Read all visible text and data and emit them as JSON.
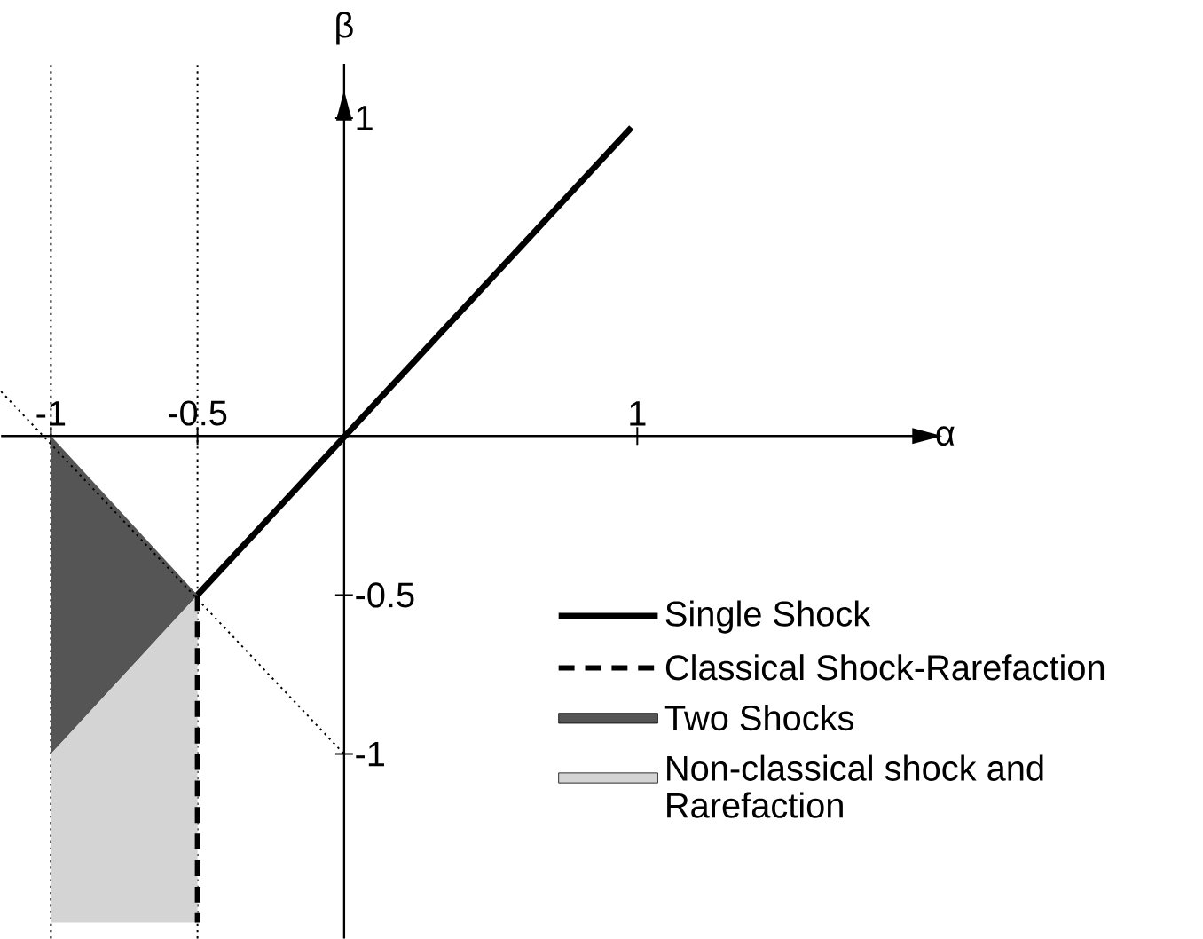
{
  "chart_data": {
    "type": "line",
    "xlabel": "α",
    "ylabel": "β",
    "xlim": [
      -1.17,
      1.95
    ],
    "ylim": [
      -1.58,
      1.17
    ],
    "xticks": [
      -1,
      -0.5,
      1
    ],
    "yticks": [
      -1,
      -0.5,
      1
    ],
    "legend": "bottom right",
    "series": [
      {
        "name": "Single Shock",
        "color": "#000000",
        "line_style": "solid",
        "x": [
          -0.5,
          0.98
        ],
        "values": [
          -0.5,
          0.97
        ]
      },
      {
        "name": "Classical Shock-Rarefaction",
        "color": "#000000",
        "line_style": "dashed",
        "x": [
          -0.5,
          -0.5
        ],
        "values": [
          -0.5,
          -1.53
        ]
      },
      {
        "name": "Two Shocks",
        "type": "area",
        "color": "#555555",
        "x": [
          -1,
          -0.5,
          -1
        ],
        "values": [
          0,
          -0.5,
          -1
        ]
      },
      {
        "name": "Non-classical shock and Rarefaction",
        "type": "area",
        "color": "#d4d4d4",
        "x": [
          -1,
          -0.5,
          -0.5,
          -1
        ],
        "values": [
          -1,
          -0.5,
          -1.53,
          -1.53
        ]
      },
      {
        "color": "#000000",
        "line_style": "dotted",
        "x": [
          -1.17,
          0
        ],
        "values": [
          0.14,
          -1
        ]
      }
    ],
    "ref_lines": [
      {
        "axis": "x",
        "value": -1,
        "line_style": "dotted"
      },
      {
        "axis": "x",
        "value": -0.5,
        "line_style": "dotted"
      }
    ]
  }
}
